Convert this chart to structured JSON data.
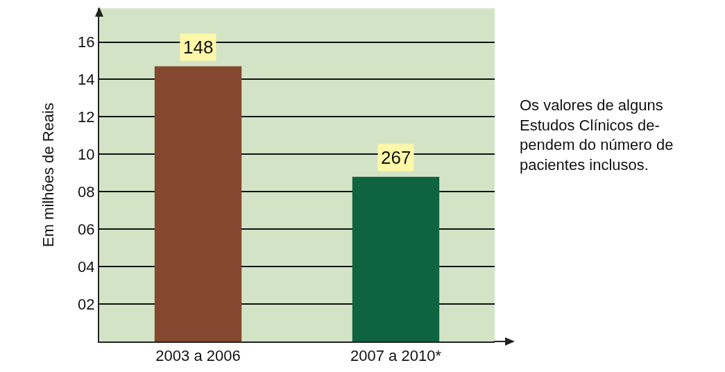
{
  "chart_data": {
    "type": "bar",
    "ylabel": "Em milhões de Reais",
    "categories": [
      "2003 a 2006",
      "2007 a 2010*"
    ],
    "series": [
      {
        "colors": [
          "#84472f",
          "#0e6340"
        ],
        "values": [
          14.7,
          8.8
        ]
      }
    ],
    "ylim": [
      0,
      17.8
    ],
    "yticks": [
      {
        "value": 2,
        "label": "02"
      },
      {
        "value": 4,
        "label": "04"
      },
      {
        "value": 6,
        "label": "06"
      },
      {
        "value": 8,
        "label": "08"
      },
      10,
      12,
      14,
      16
    ],
    "grid": "y",
    "annotations": [
      {
        "text": "148",
        "x": "2003 a 2006",
        "y": 14.7
      },
      {
        "text": "267",
        "x": "2007 a 2010*",
        "y": 8.8
      },
      "Os valores de alguns\nEstudos Clínicos de-\npendem do número de\npacientes inclusos."
    ]
  }
}
